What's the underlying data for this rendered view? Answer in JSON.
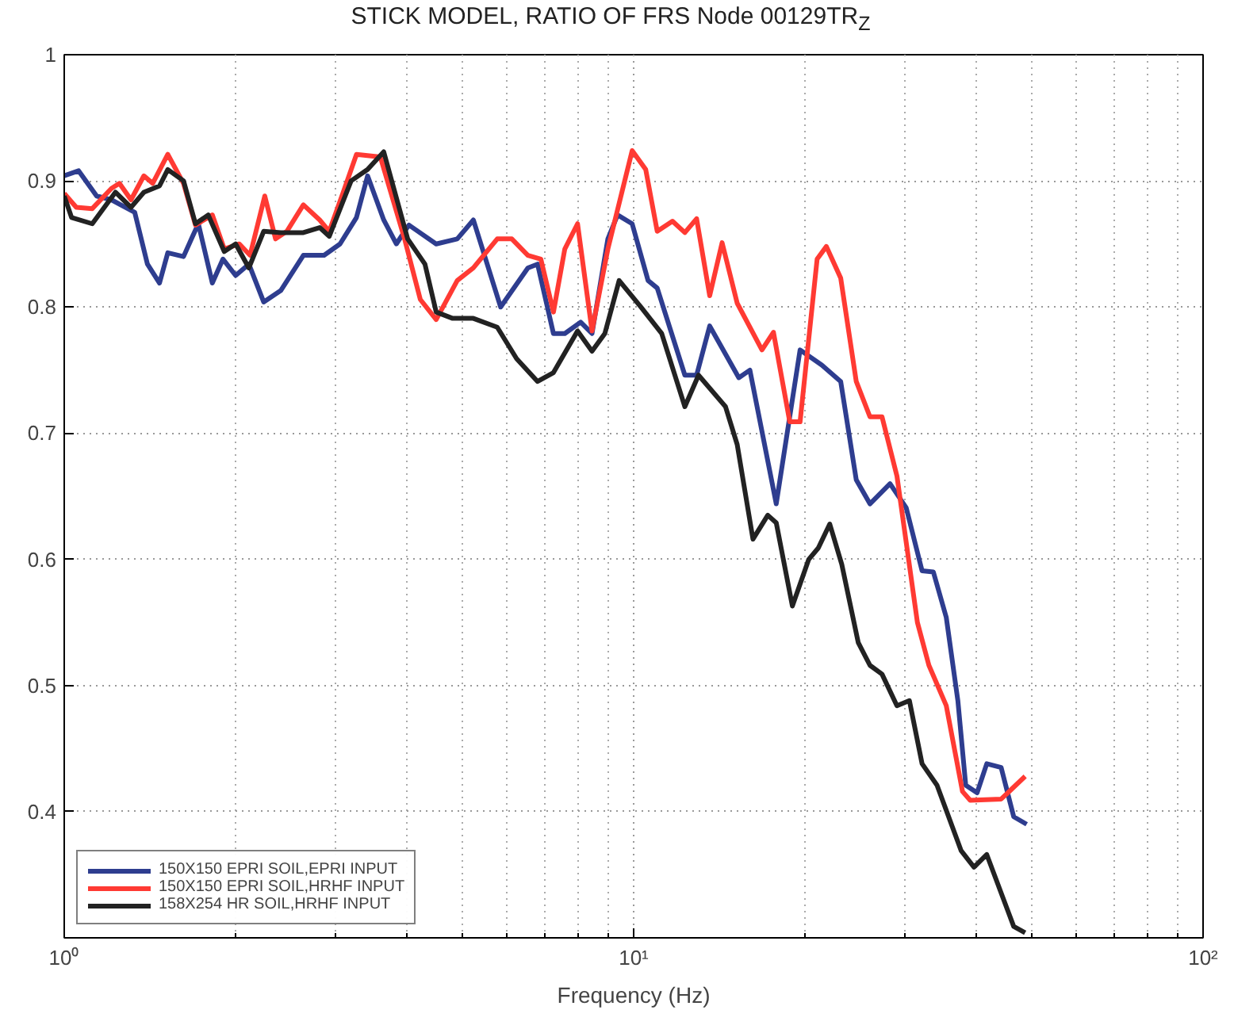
{
  "chart_data": {
    "type": "line",
    "title": "STICK MODEL, RATIO OF FRS Node 00129TR$_{Z}$",
    "xlabel": "Frequency (Hz)",
    "log": "x",
    "grid": true,
    "legend": "bottom left",
    "line_style": "solid",
    "marker": "none",
    "xlim": [
      1,
      100
    ],
    "xticks": [
      {
        "value": 1,
        "label": "10⁰"
      },
      {
        "value": 10,
        "label": "10¹"
      },
      {
        "value": 100,
        "label": "10²"
      }
    ],
    "ylim": [
      0.3,
      1
    ],
    "yticks": [
      0.4,
      0.5,
      0.6,
      0.7,
      0.8,
      0.9,
      1
    ],
    "series": [
      {
        "name": "150X150 EPRI SOIL,EPRI INPUT",
        "color": "#2e3d8f",
        "x": [
          1.0,
          1.06,
          1.14,
          1.21,
          1.33,
          1.4,
          1.47,
          1.52,
          1.62,
          1.68,
          1.72,
          1.82,
          1.9,
          2.0,
          2.11,
          2.24,
          2.4,
          2.63,
          2.86,
          3.05,
          3.26,
          3.41,
          3.64,
          3.83,
          4.03,
          4.5,
          4.9,
          5.23,
          5.84,
          6.52,
          6.78,
          7.23,
          7.57,
          8.07,
          8.45,
          9.01,
          9.37,
          9.94,
          10.6,
          11.0,
          12.3,
          12.9,
          13.6,
          15.3,
          16.0,
          17.8,
          19.6,
          21.4,
          23.1,
          24.6,
          26.0,
          28.2,
          30.1,
          32.1,
          33.6,
          35.4,
          37.1,
          38.3,
          40.1,
          41.7,
          44.2,
          46.5,
          49.0
        ],
        "values": [
          0.904,
          0.908,
          0.888,
          0.885,
          0.875,
          0.834,
          0.819,
          0.843,
          0.84,
          0.856,
          0.866,
          0.819,
          0.838,
          0.825,
          0.834,
          0.804,
          0.813,
          0.841,
          0.841,
          0.85,
          0.871,
          0.904,
          0.869,
          0.85,
          0.865,
          0.85,
          0.854,
          0.869,
          0.8,
          0.831,
          0.834,
          0.779,
          0.779,
          0.788,
          0.779,
          0.854,
          0.873,
          0.866,
          0.821,
          0.815,
          0.746,
          0.746,
          0.785,
          0.744,
          0.75,
          0.644,
          0.766,
          0.754,
          0.741,
          0.663,
          0.644,
          0.66,
          0.641,
          0.591,
          0.59,
          0.554,
          0.488,
          0.421,
          0.415,
          0.438,
          0.435,
          0.396,
          0.39
        ]
      },
      {
        "name": "150X150 EPRI SOIL,HRHF INPUT",
        "color": "#ff3a33",
        "x": [
          1.0,
          1.05,
          1.12,
          1.21,
          1.25,
          1.31,
          1.38,
          1.43,
          1.52,
          1.62,
          1.7,
          1.82,
          1.91,
          2.03,
          2.12,
          2.25,
          2.35,
          2.46,
          2.63,
          2.81,
          2.92,
          3.09,
          3.26,
          3.59,
          3.96,
          4.22,
          4.5,
          4.9,
          5.23,
          5.76,
          6.11,
          6.52,
          6.87,
          7.23,
          7.57,
          7.97,
          8.45,
          9.01,
          9.94,
          10.5,
          11.0,
          11.7,
          12.3,
          12.9,
          13.6,
          14.3,
          15.2,
          16.8,
          17.6,
          18.8,
          19.6,
          21.0,
          21.8,
          23.1,
          24.6,
          26.0,
          27.3,
          29.0,
          31.5,
          33.0,
          35.4,
          37.8,
          39.0,
          44.2,
          48.7
        ],
        "values": [
          0.89,
          0.879,
          0.878,
          0.894,
          0.898,
          0.885,
          0.904,
          0.898,
          0.921,
          0.898,
          0.865,
          0.873,
          0.846,
          0.85,
          0.841,
          0.888,
          0.854,
          0.86,
          0.881,
          0.869,
          0.86,
          0.891,
          0.921,
          0.919,
          0.854,
          0.806,
          0.79,
          0.821,
          0.831,
          0.854,
          0.854,
          0.841,
          0.838,
          0.796,
          0.846,
          0.866,
          0.781,
          0.846,
          0.924,
          0.909,
          0.86,
          0.868,
          0.859,
          0.87,
          0.809,
          0.851,
          0.803,
          0.766,
          0.78,
          0.709,
          0.709,
          0.838,
          0.848,
          0.823,
          0.741,
          0.713,
          0.713,
          0.666,
          0.55,
          0.516,
          0.484,
          0.416,
          0.409,
          0.41,
          0.428
        ]
      },
      {
        "name": "158X254 HR SOIL,HRHF INPUT",
        "color": "#222222",
        "x": [
          1.0,
          1.03,
          1.12,
          1.23,
          1.31,
          1.38,
          1.47,
          1.52,
          1.62,
          1.7,
          1.79,
          1.91,
          2.0,
          2.11,
          2.24,
          2.4,
          2.63,
          2.81,
          2.92,
          3.19,
          3.41,
          3.64,
          4.01,
          4.3,
          4.5,
          4.81,
          5.23,
          5.76,
          6.23,
          6.78,
          7.23,
          7.97,
          8.45,
          8.9,
          9.43,
          10.3,
          11.2,
          12.3,
          13.0,
          14.5,
          15.2,
          16.2,
          17.2,
          17.8,
          19.0,
          20.3,
          21.1,
          22.1,
          23.2,
          24.8,
          26.0,
          27.3,
          29.0,
          30.5,
          32.1,
          34.1,
          37.6,
          39.6,
          41.7,
          46.5,
          48.7
        ],
        "values": [
          0.888,
          0.871,
          0.866,
          0.891,
          0.879,
          0.891,
          0.896,
          0.909,
          0.9,
          0.866,
          0.873,
          0.844,
          0.85,
          0.831,
          0.86,
          0.859,
          0.859,
          0.863,
          0.856,
          0.9,
          0.909,
          0.923,
          0.854,
          0.834,
          0.796,
          0.791,
          0.791,
          0.784,
          0.759,
          0.741,
          0.748,
          0.781,
          0.765,
          0.779,
          0.821,
          0.8,
          0.779,
          0.721,
          0.746,
          0.721,
          0.691,
          0.616,
          0.635,
          0.629,
          0.563,
          0.6,
          0.609,
          0.628,
          0.596,
          0.534,
          0.516,
          0.509,
          0.484,
          0.488,
          0.438,
          0.421,
          0.369,
          0.356,
          0.366,
          0.309,
          0.304
        ]
      }
    ]
  }
}
